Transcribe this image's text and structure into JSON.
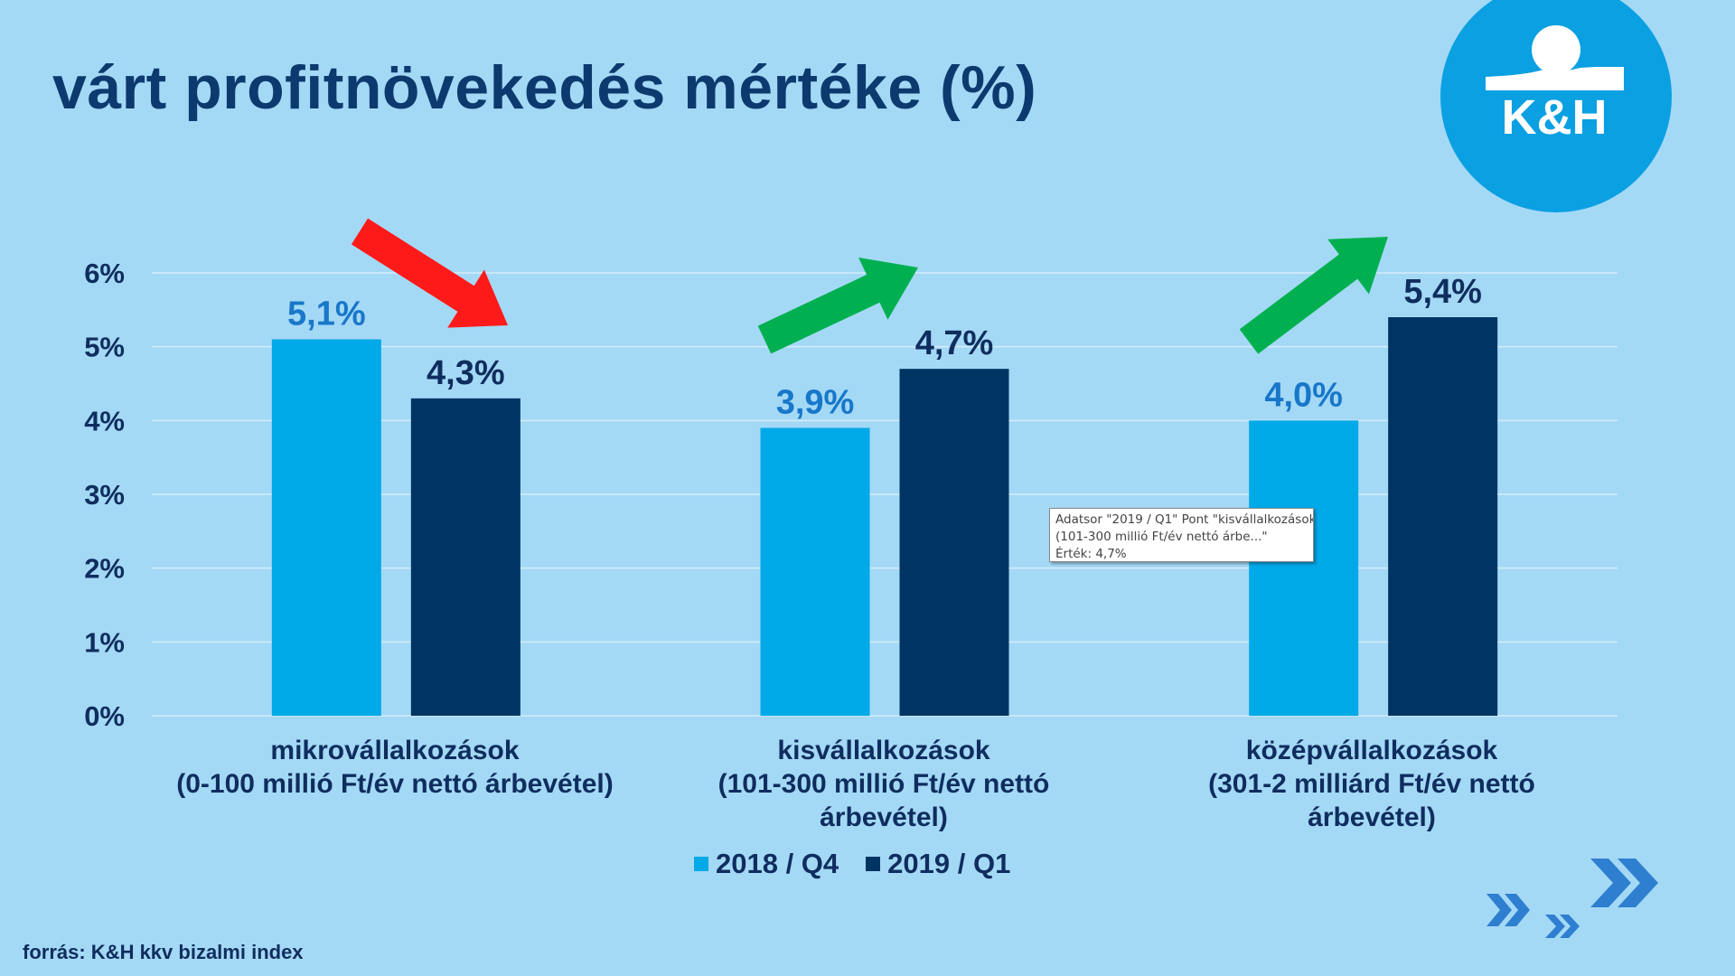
{
  "title": "várt profitnövekedés mértéke (%)",
  "logo_text": "K&H",
  "source": "forrás: K&H kkv bizalmi index",
  "tooltip": {
    "line1": "Adatsor \"2019 / Q1\" Pont \"kisvállalkozások",
    "line2": "(101-300 millió Ft/év nettó árbe...\"",
    "line3": "Érték: 4,7%"
  },
  "colors": {
    "background": "#a4d9f6",
    "series1": "#00a9e8",
    "series2": "#003462",
    "label1": "#1877c9",
    "label2": "#0f2d5e",
    "down_arrow": "#ff1a1a",
    "up_arrow": "#00b050"
  },
  "chart_data": {
    "type": "bar",
    "title": "várt profitnövekedés mértéke (%)",
    "categories": [
      [
        "mikrovállalkozások",
        "(0-100 millió Ft/év nettó árbevétel)"
      ],
      [
        "kisvállalkozások",
        "(101-300 millió Ft/év nettó",
        "árbevétel)"
      ],
      [
        "középvállalkozások",
        "(301-2 milliárd Ft/év nettó",
        "árbevétel)"
      ]
    ],
    "series": [
      {
        "name": "2018 / Q4",
        "values": [
          5.1,
          3.9,
          4.0
        ],
        "labels": [
          "5,1%",
          "3,9%",
          "4,0%"
        ]
      },
      {
        "name": "2019 / Q1",
        "values": [
          4.3,
          4.7,
          5.4
        ],
        "labels": [
          "4,3%",
          "4,7%",
          "5,4%"
        ]
      }
    ],
    "yticks": [
      "0%",
      "1%",
      "2%",
      "3%",
      "4%",
      "5%",
      "6%"
    ],
    "ylim": [
      0,
      6
    ],
    "grid": true,
    "legend": "bottom",
    "trend_arrows": [
      "down",
      "up",
      "up"
    ]
  }
}
